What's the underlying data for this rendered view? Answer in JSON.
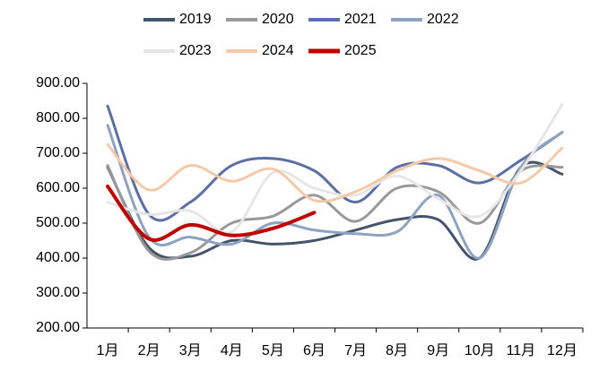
{
  "chart_data": {
    "type": "line",
    "categories": [
      "1月",
      "2月",
      "3月",
      "4月",
      "5月",
      "6月",
      "7月",
      "8月",
      "9月",
      "10月",
      "11月",
      "12月"
    ],
    "series": [
      {
        "name": "2019",
        "color": "#44546a",
        "values": [
          660,
          430,
          405,
          450,
          440,
          450,
          480,
          510,
          510,
          400,
          660,
          640
        ]
      },
      {
        "name": "2020",
        "color": "#999999",
        "values": [
          665,
          420,
          415,
          500,
          520,
          580,
          505,
          600,
          590,
          500,
          650,
          660
        ]
      },
      {
        "name": "2021",
        "color": "#5b6fa3",
        "values": [
          835,
          525,
          560,
          665,
          685,
          650,
          560,
          660,
          665,
          615,
          680,
          760
        ]
      },
      {
        "name": "2022",
        "color": "#8ea2c2",
        "values": [
          780,
          460,
          460,
          440,
          500,
          480,
          470,
          475,
          580,
          400,
          660,
          760
        ]
      },
      {
        "name": "2023",
        "color": "#e6e6e6",
        "values": [
          560,
          525,
          535,
          475,
          645,
          600,
          580,
          635,
          570,
          520,
          650,
          840
        ]
      },
      {
        "name": "2024",
        "color": "#f5c9a8",
        "values": [
          725,
          595,
          665,
          620,
          655,
          565,
          590,
          650,
          685,
          650,
          615,
          715
        ]
      },
      {
        "name": "2025",
        "color": "#c00000",
        "values": [
          605,
          455,
          495,
          465,
          485,
          530,
          null,
          null,
          null,
          null,
          null,
          null
        ]
      }
    ],
    "ylim": [
      200,
      900
    ],
    "yticks": [
      {
        "value": 200,
        "label": "200.00"
      },
      {
        "value": 300,
        "label": "300.00"
      },
      {
        "value": 400,
        "label": "400.00"
      },
      {
        "value": 500,
        "label": "500.00"
      },
      {
        "value": 600,
        "label": "600.00"
      },
      {
        "value": 700,
        "label": "700.00"
      },
      {
        "value": 800,
        "label": "800.00"
      },
      {
        "value": 900,
        "label": "900.00"
      }
    ],
    "legend": "top",
    "smooth": true
  }
}
